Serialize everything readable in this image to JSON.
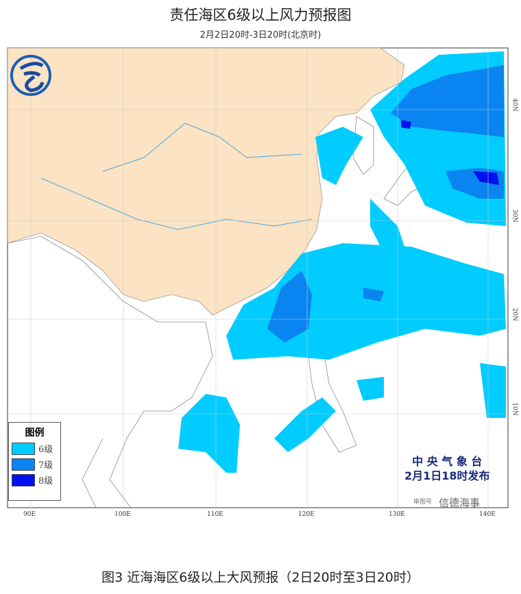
{
  "title": "责任海区6级以上风力预报图",
  "subtitle": "2月2日20时-3日20时(北京时)",
  "legend": {
    "title": "图例",
    "items": [
      {
        "label": "6级",
        "color": "#00ccff"
      },
      {
        "label": "7级",
        "color": "#0a84f0"
      },
      {
        "label": "8级",
        "color": "#0010ee"
      }
    ]
  },
  "publisher": {
    "line1": "中 央 气 象 台",
    "line2": "2月1日18时发布"
  },
  "watermark": {
    "map_no": "审图号",
    "source": "信德海事"
  },
  "lon_labels": [
    "90E",
    "100E",
    "110E",
    "120E",
    "130E",
    "140E"
  ],
  "lat_labels": [
    "40N",
    "30N",
    "20N",
    "10N"
  ],
  "caption": "图3 近海海区6级以上大风预报（2日20时至3日20时）",
  "colors": {
    "land": "#fbe3c3",
    "sea": "#ffffff",
    "river": "#4aa8e0"
  }
}
